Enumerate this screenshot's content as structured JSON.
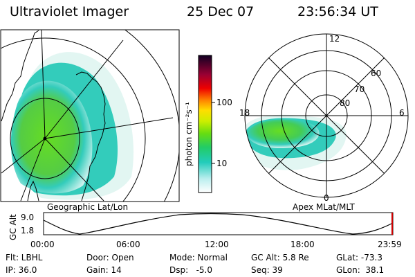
{
  "header": {
    "title": "Ultraviolet Imager",
    "date": "25 Dec 07",
    "time": "23:56:34 UT"
  },
  "geo_panel": {
    "label": "Geographic Lat/Lon"
  },
  "polar_panel": {
    "label": "Apex MLat/MLT",
    "mlt_labels": [
      "12",
      "18",
      "6",
      "0"
    ],
    "lat_labels": [
      "60",
      "70",
      "80"
    ]
  },
  "colorbar": {
    "unit": "photon cm⁻²s⁻¹",
    "tick_labels": [
      "100",
      "10"
    ]
  },
  "orbit": {
    "axis_label": "GC Alt",
    "y_labels": [
      "9.0",
      "1.8"
    ],
    "x_labels": [
      "00:00",
      "06:00",
      "12:00",
      "18:00",
      "23:59"
    ]
  },
  "info": {
    "row1": [
      "Flt: LBHL",
      "Door: Open",
      "Mode: Normal",
      "GC Alt: 5.8 Re",
      "GLat: -73.3"
    ],
    "row2": [
      "IP: 36.0",
      "Gain: 14",
      "Dsp:   -5.0",
      "Seq: 39",
      "GLon:  38.1"
    ]
  },
  "colors": {
    "aurora_green": "#66dd22",
    "aurora_cyan": "#33ccbb",
    "aurora_light": "#aaeedd",
    "cursor": "#cc0000"
  }
}
